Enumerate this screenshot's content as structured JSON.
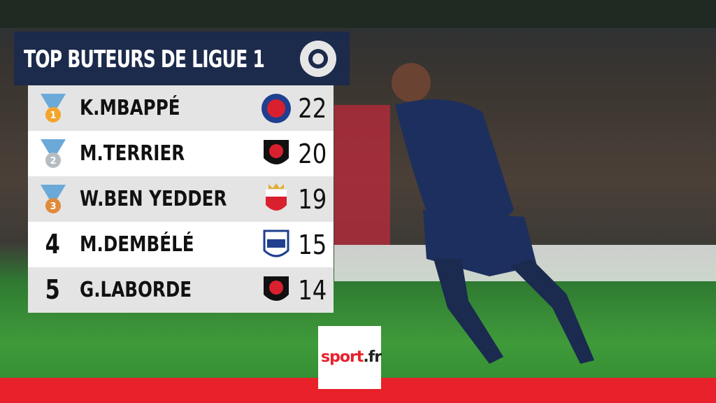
{
  "header": {
    "title": "TOP BUTEURS DE LIGUE 1"
  },
  "table": {
    "rows": [
      {
        "rank": 1,
        "player": "K.MBAPPÉ",
        "goals": 22,
        "club": "psg"
      },
      {
        "rank": 2,
        "player": "M.TERRIER",
        "goals": 20,
        "club": "rennes"
      },
      {
        "rank": 3,
        "player": "W.BEN YEDDER",
        "goals": 19,
        "club": "monaco"
      },
      {
        "rank": 4,
        "player": "M.DEMBÉLÉ",
        "goals": 15,
        "club": "lyon"
      },
      {
        "rank": 5,
        "player": "G.LABORDE",
        "goals": 14,
        "club": "rennes"
      }
    ]
  },
  "logo": {
    "name": "sport",
    "suffix": ".fr"
  }
}
